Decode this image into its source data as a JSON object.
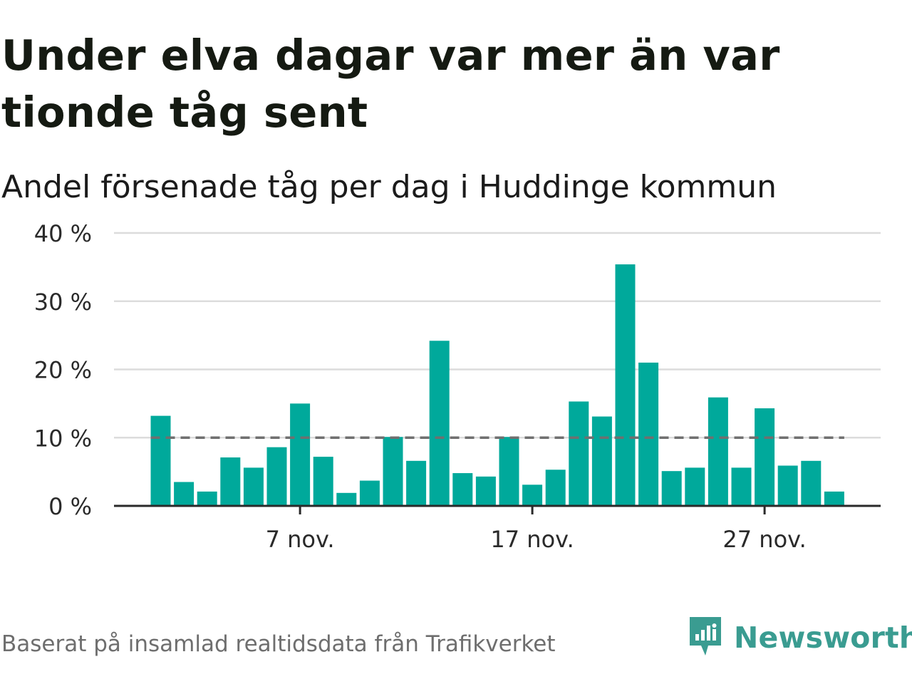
{
  "title": "Under elva dagar var mer än var tionde tåg sent",
  "subtitle": "Andel försenade tåg per dag i Huddinge kommun",
  "source": "Baserat på insamlad realtidsdata från Trafikverket",
  "brand": {
    "name": "Newsworthy",
    "color": "#3a9c91",
    "icon": "newsworthy-logo-icon"
  },
  "colors": {
    "bar": "#00a99b",
    "reference_line": "#6f6f6f",
    "grid": "#dcdcdc",
    "axis": "#2a2a2a"
  },
  "chart_data": {
    "type": "bar",
    "x_start": "1 nov.",
    "x": [
      "1 nov.",
      "2 nov.",
      "3 nov.",
      "4 nov.",
      "5 nov.",
      "6 nov.",
      "7 nov.",
      "8 nov.",
      "9 nov.",
      "10 nov.",
      "11 nov.",
      "12 nov.",
      "13 nov.",
      "14 nov.",
      "15 nov.",
      "16 nov.",
      "17 nov.",
      "18 nov.",
      "19 nov.",
      "20 nov.",
      "21 nov.",
      "22 nov.",
      "23 nov.",
      "24 nov.",
      "25 nov.",
      "26 nov.",
      "27 nov.",
      "28 nov.",
      "29 nov.",
      "30 nov."
    ],
    "values": [
      13.2,
      3.5,
      2.1,
      7.1,
      5.6,
      8.6,
      15.0,
      7.2,
      1.9,
      3.7,
      10.1,
      6.6,
      24.2,
      4.8,
      4.3,
      10.1,
      3.1,
      5.3,
      15.3,
      13.1,
      35.4,
      21.0,
      5.1,
      5.6,
      15.9,
      5.6,
      14.3,
      5.9,
      6.6,
      2.1
    ],
    "y_ticks": [
      {
        "value": 0,
        "label": "0 %"
      },
      {
        "value": 10,
        "label": "10 %"
      },
      {
        "value": 20,
        "label": "20 %"
      },
      {
        "value": 30,
        "label": "30 %"
      },
      {
        "value": 40,
        "label": "40 %"
      }
    ],
    "x_ticks": [
      {
        "x": "7 nov.",
        "label": "7 nov."
      },
      {
        "x": "17 nov.",
        "label": "17 nov."
      },
      {
        "x": "27 nov.",
        "label": "27 nov."
      }
    ],
    "reference_line": {
      "value": 10,
      "style": "dashed"
    },
    "ylim": [
      0,
      40
    ],
    "grid": true,
    "xlabel": "",
    "ylabel": ""
  }
}
